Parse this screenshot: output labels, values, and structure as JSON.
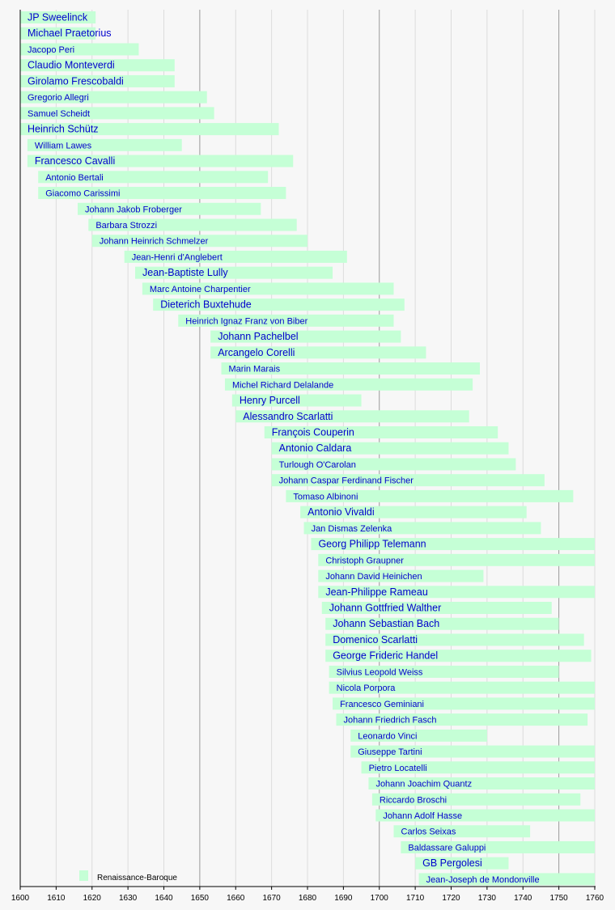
{
  "chart_data": {
    "type": "bar",
    "orientation": "horizontal-timeline",
    "xlim": [
      1600,
      1760
    ],
    "x_ticks": [
      1600,
      1610,
      1620,
      1630,
      1640,
      1650,
      1660,
      1670,
      1680,
      1690,
      1700,
      1710,
      1720,
      1730,
      1740,
      1750,
      1760
    ],
    "major_grid_every": 50,
    "grid": true,
    "bar_color": "#c5ffd6",
    "label_color": "#0000cc",
    "legend": [
      {
        "label": "Renaissance-Baroque",
        "color": "#c5ffd6"
      }
    ],
    "legend_placement": "bottom-left",
    "composers": [
      {
        "name": "JP Sweelinck",
        "start": 1600,
        "end": 1621,
        "prominent": true
      },
      {
        "name": "Michael Praetorius",
        "start": 1600,
        "end": 1621,
        "prominent": true
      },
      {
        "name": "Jacopo Peri",
        "start": 1600,
        "end": 1633,
        "prominent": false
      },
      {
        "name": "Claudio Monteverdi",
        "start": 1600,
        "end": 1643,
        "prominent": true
      },
      {
        "name": "Girolamo Frescobaldi",
        "start": 1600,
        "end": 1643,
        "prominent": true
      },
      {
        "name": "Gregorio Allegri",
        "start": 1600,
        "end": 1652,
        "prominent": false
      },
      {
        "name": "Samuel Scheidt",
        "start": 1600,
        "end": 1654,
        "prominent": false
      },
      {
        "name": "Heinrich Schütz",
        "start": 1600,
        "end": 1672,
        "prominent": true
      },
      {
        "name": "William Lawes",
        "start": 1602,
        "end": 1645,
        "prominent": false
      },
      {
        "name": "Francesco Cavalli",
        "start": 1602,
        "end": 1676,
        "prominent": true
      },
      {
        "name": "Antonio Bertali",
        "start": 1605,
        "end": 1669,
        "prominent": false
      },
      {
        "name": "Giacomo Carissimi",
        "start": 1605,
        "end": 1674,
        "prominent": false
      },
      {
        "name": "Johann Jakob Froberger",
        "start": 1616,
        "end": 1667,
        "prominent": false
      },
      {
        "name": "Barbara Strozzi",
        "start": 1619,
        "end": 1677,
        "prominent": false
      },
      {
        "name": "Johann Heinrich Schmelzer",
        "start": 1620,
        "end": 1680,
        "prominent": false
      },
      {
        "name": "Jean-Henri d'Anglebert",
        "start": 1629,
        "end": 1691,
        "prominent": false
      },
      {
        "name": "Jean-Baptiste Lully",
        "start": 1632,
        "end": 1687,
        "prominent": true
      },
      {
        "name": "Marc Antoine Charpentier",
        "start": 1634,
        "end": 1704,
        "prominent": false
      },
      {
        "name": "Dieterich Buxtehude",
        "start": 1637,
        "end": 1707,
        "prominent": true
      },
      {
        "name": "Heinrich Ignaz Franz von Biber",
        "start": 1644,
        "end": 1704,
        "prominent": false
      },
      {
        "name": "Johann Pachelbel",
        "start": 1653,
        "end": 1706,
        "prominent": true
      },
      {
        "name": "Arcangelo Corelli",
        "start": 1653,
        "end": 1713,
        "prominent": true
      },
      {
        "name": "Marin Marais",
        "start": 1656,
        "end": 1728,
        "prominent": false
      },
      {
        "name": "Michel Richard Delalande",
        "start": 1657,
        "end": 1726,
        "prominent": false
      },
      {
        "name": "Henry Purcell",
        "start": 1659,
        "end": 1695,
        "prominent": true
      },
      {
        "name": "Alessandro Scarlatti",
        "start": 1660,
        "end": 1725,
        "prominent": true
      },
      {
        "name": "François Couperin",
        "start": 1668,
        "end": 1733,
        "prominent": true
      },
      {
        "name": "Antonio Caldara",
        "start": 1670,
        "end": 1736,
        "prominent": true
      },
      {
        "name": "Turlough O'Carolan",
        "start": 1670,
        "end": 1738,
        "prominent": false
      },
      {
        "name": "Johann Caspar Ferdinand Fischer",
        "start": 1670,
        "end": 1746,
        "prominent": false
      },
      {
        "name": "Tomaso Albinoni",
        "start": 1674,
        "end": 1754,
        "prominent": false
      },
      {
        "name": "Antonio Vivaldi",
        "start": 1678,
        "end": 1741,
        "prominent": true
      },
      {
        "name": "Jan Dismas Zelenka",
        "start": 1679,
        "end": 1745,
        "prominent": false
      },
      {
        "name": "Georg Philipp Telemann",
        "start": 1681,
        "end": 1760,
        "prominent": true
      },
      {
        "name": "Christoph Graupner",
        "start": 1683,
        "end": 1760,
        "prominent": false
      },
      {
        "name": "Johann David Heinichen",
        "start": 1683,
        "end": 1729,
        "prominent": false
      },
      {
        "name": "Jean-Philippe Rameau",
        "start": 1683,
        "end": 1760,
        "prominent": true
      },
      {
        "name": "Johann Gottfried Walther",
        "start": 1684,
        "end": 1748,
        "prominent": true
      },
      {
        "name": "Johann Sebastian Bach",
        "start": 1685,
        "end": 1750,
        "prominent": true
      },
      {
        "name": "Domenico Scarlatti",
        "start": 1685,
        "end": 1757,
        "prominent": true
      },
      {
        "name": "George Frideric Handel",
        "start": 1685,
        "end": 1759,
        "prominent": true
      },
      {
        "name": "Silvius Leopold Weiss",
        "start": 1686,
        "end": 1750,
        "prominent": false
      },
      {
        "name": "Nicola Porpora",
        "start": 1686,
        "end": 1760,
        "prominent": false
      },
      {
        "name": "Francesco Geminiani",
        "start": 1687,
        "end": 1760,
        "prominent": false
      },
      {
        "name": "Johann Friedrich Fasch",
        "start": 1688,
        "end": 1758,
        "prominent": false
      },
      {
        "name": "Leonardo Vinci",
        "start": 1692,
        "end": 1730,
        "prominent": false
      },
      {
        "name": "Giuseppe Tartini",
        "start": 1692,
        "end": 1760,
        "prominent": false
      },
      {
        "name": "Pietro Locatelli",
        "start": 1695,
        "end": 1760,
        "prominent": false
      },
      {
        "name": "Johann Joachim Quantz",
        "start": 1697,
        "end": 1760,
        "prominent": false
      },
      {
        "name": "Riccardo Broschi",
        "start": 1698,
        "end": 1756,
        "prominent": false
      },
      {
        "name": "Johann Adolf Hasse",
        "start": 1699,
        "end": 1760,
        "prominent": false
      },
      {
        "name": "Carlos Seixas",
        "start": 1704,
        "end": 1742,
        "prominent": false
      },
      {
        "name": "Baldassare Galuppi",
        "start": 1706,
        "end": 1760,
        "prominent": false
      },
      {
        "name": "GB Pergolesi",
        "start": 1710,
        "end": 1736,
        "prominent": true
      },
      {
        "name": "Jean-Joseph de Mondonville",
        "start": 1711,
        "end": 1760,
        "prominent": false
      }
    ]
  }
}
